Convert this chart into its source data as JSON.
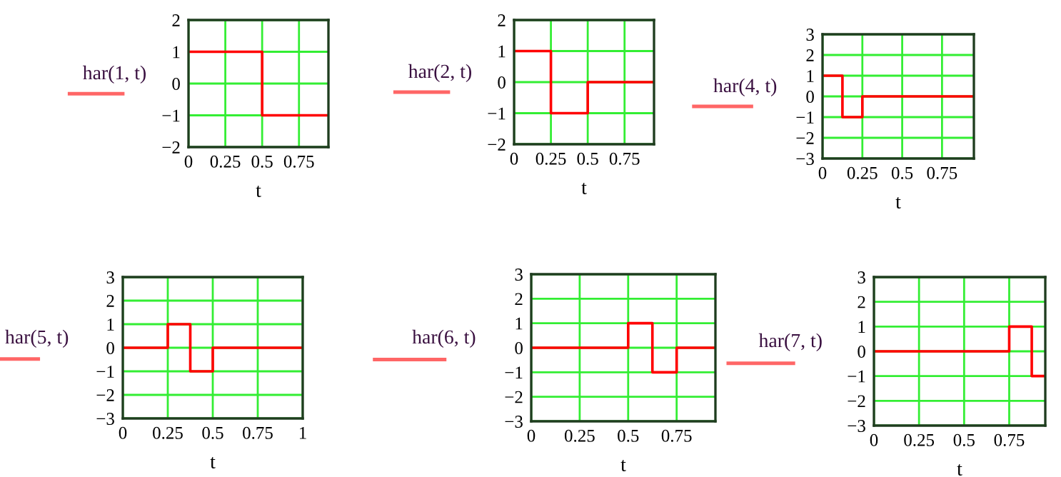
{
  "chart_data": [
    {
      "type": "step",
      "xlabel": "t",
      "series": [
        {
          "name": "har(1, t)",
          "color": "#ff0000",
          "x": [
            0,
            0.5,
            0.95
          ],
          "values": [
            1,
            -1,
            -1
          ]
        }
      ],
      "xlim": [
        0,
        0.95
      ],
      "ylim": [
        -2,
        2
      ],
      "xticks": [
        0,
        0.25,
        0.5,
        0.75
      ],
      "yticks": [
        {
          "value": -2,
          "label": "−2"
        },
        {
          "value": -1,
          "label": "−1"
        },
        0,
        1,
        2
      ],
      "grid": true,
      "legend": "left"
    },
    {
      "type": "step",
      "xlabel": "t",
      "series": [
        {
          "name": "har(2, t)",
          "color": "#ff0000",
          "x": [
            0,
            0.25,
            0.5,
            0.95
          ],
          "values": [
            1,
            -1,
            0,
            0
          ]
        }
      ],
      "xlim": [
        0,
        0.95
      ],
      "ylim": [
        -2,
        2
      ],
      "xticks": [
        0,
        0.25,
        0.5,
        0.75
      ],
      "yticks": [
        {
          "value": -2,
          "label": "−2"
        },
        {
          "value": -1,
          "label": "−1"
        },
        0,
        1,
        2
      ],
      "grid": true,
      "legend": "left"
    },
    {
      "type": "step",
      "xlabel": "t",
      "series": [
        {
          "name": "har(4, t)",
          "color": "#ff0000",
          "x": [
            0,
            0.125,
            0.25,
            0.95
          ],
          "values": [
            1,
            -1,
            0,
            0
          ]
        }
      ],
      "xlim": [
        0,
        0.95
      ],
      "ylim": [
        -3,
        3
      ],
      "xticks": [
        0,
        0.25,
        0.5,
        0.75
      ],
      "yticks": [
        {
          "value": -3,
          "label": "−3"
        },
        {
          "value": -2,
          "label": "−2"
        },
        {
          "value": -1,
          "label": "−1"
        },
        0,
        1,
        2,
        3
      ],
      "grid": true,
      "legend": "left"
    },
    {
      "type": "step",
      "xlabel": "t",
      "series": [
        {
          "name": "har(5, t)",
          "color": "#ff0000",
          "x": [
            0,
            0.25,
            0.375,
            0.5,
            1
          ],
          "values": [
            0,
            1,
            -1,
            0,
            0
          ]
        }
      ],
      "xlim": [
        0,
        1
      ],
      "ylim": [
        -3,
        3
      ],
      "xticks": [
        0,
        0.25,
        0.5,
        0.75,
        1
      ],
      "yticks": [
        {
          "value": -3,
          "label": "−3"
        },
        {
          "value": -2,
          "label": "−2"
        },
        {
          "value": -1,
          "label": "−1"
        },
        0,
        1,
        2,
        3
      ],
      "grid": true,
      "legend": "left"
    },
    {
      "type": "step",
      "xlabel": "t",
      "series": [
        {
          "name": "har(6, t)",
          "color": "#ff0000",
          "x": [
            0,
            0.5,
            0.625,
            0.75,
            0.95
          ],
          "values": [
            0,
            1,
            -1,
            0,
            0
          ]
        }
      ],
      "xlim": [
        0,
        0.95
      ],
      "ylim": [
        -3,
        3
      ],
      "xticks": [
        0,
        0.25,
        0.5,
        0.75
      ],
      "yticks": [
        {
          "value": -3,
          "label": "−3"
        },
        {
          "value": -2,
          "label": "−2"
        },
        {
          "value": -1,
          "label": "−1"
        },
        0,
        1,
        2,
        3
      ],
      "grid": true,
      "legend": "left"
    },
    {
      "type": "step",
      "xlabel": "t",
      "series": [
        {
          "name": "har(7, t)",
          "color": "#ff0000",
          "x": [
            0,
            0.75,
            0.875,
            0.95
          ],
          "values": [
            0,
            1,
            -1,
            -1
          ]
        }
      ],
      "xlim": [
        0,
        0.95
      ],
      "ylim": [
        -3,
        3
      ],
      "xticks": [
        0,
        0.25,
        0.5,
        0.75
      ],
      "yticks": [
        {
          "value": -3,
          "label": "−3"
        },
        {
          "value": -2,
          "label": "−2"
        },
        {
          "value": -1,
          "label": "−1"
        },
        0,
        1,
        2,
        3
      ],
      "grid": true,
      "legend": "left"
    }
  ]
}
